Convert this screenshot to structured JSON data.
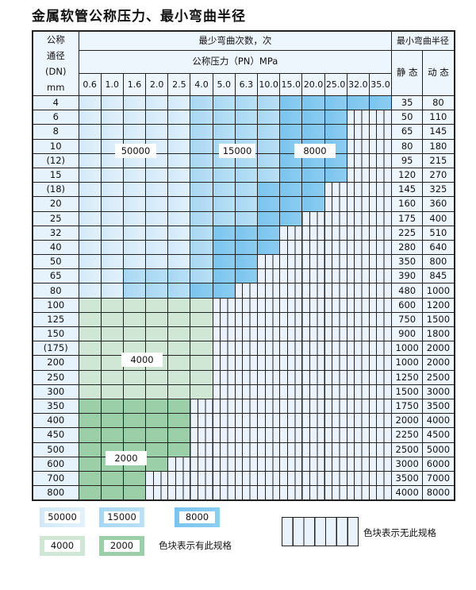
{
  "title": "金属软管公称压力、最小弯曲半径",
  "header": {
    "dn_label": "公称\n通径\n(DN)\nmm",
    "cycles_label": "最少弯曲次数，次",
    "radius_label": "最小弯曲半径",
    "pressure_label": "公称压力（PN）MPa",
    "static_label": "静 态",
    "dynamic_label": "动 态",
    "pressures": [
      "0.6",
      "1.0",
      "1.6",
      "2.0",
      "2.5",
      "4.0",
      "5.0",
      "6.3",
      "10.0",
      "15.0",
      "20.0",
      "25.0",
      "32.0",
      "35.0"
    ]
  },
  "colors": {
    "50000": "#d2e9f9",
    "15000": "#a8d7f3",
    "8000": "#79c4ee",
    "4000": "#d0e7d5",
    "2000": "#9acfa8",
    "none": "#eaf3fb"
  },
  "rows": [
    {
      "dn": "4",
      "static": "35",
      "dynamic": "80",
      "segments": [
        [
          "50000",
          5
        ],
        [
          "15000",
          4
        ],
        [
          "8000",
          5
        ]
      ]
    },
    {
      "dn": "6",
      "static": "50",
      "dynamic": "110",
      "segments": [
        [
          "50000",
          5
        ],
        [
          "15000",
          4
        ],
        [
          "8000",
          3
        ],
        [
          "none",
          2
        ]
      ]
    },
    {
      "dn": "8",
      "static": "65",
      "dynamic": "145",
      "segments": [
        [
          "50000",
          5
        ],
        [
          "15000",
          4
        ],
        [
          "8000",
          3
        ],
        [
          "none",
          2
        ]
      ]
    },
    {
      "dn": "10",
      "static": "80",
      "dynamic": "180",
      "segments": [
        [
          "50000",
          5
        ],
        [
          "15000",
          4
        ],
        [
          "8000",
          3
        ],
        [
          "none",
          2
        ]
      ]
    },
    {
      "dn": "(12)",
      "static": "95",
      "dynamic": "215",
      "segments": [
        [
          "50000",
          5
        ],
        [
          "15000",
          4
        ],
        [
          "8000",
          3
        ],
        [
          "none",
          2
        ]
      ]
    },
    {
      "dn": "15",
      "static": "120",
      "dynamic": "270",
      "segments": [
        [
          "50000",
          5
        ],
        [
          "15000",
          4
        ],
        [
          "8000",
          3
        ],
        [
          "none",
          2
        ]
      ]
    },
    {
      "dn": "(18)",
      "static": "145",
      "dynamic": "325",
      "segments": [
        [
          "50000",
          5
        ],
        [
          "15000",
          3
        ],
        [
          "8000",
          3
        ],
        [
          "none",
          3
        ]
      ]
    },
    {
      "dn": "20",
      "static": "160",
      "dynamic": "360",
      "segments": [
        [
          "50000",
          5
        ],
        [
          "15000",
          3
        ],
        [
          "8000",
          3
        ],
        [
          "none",
          3
        ]
      ]
    },
    {
      "dn": "25",
      "static": "175",
      "dynamic": "400",
      "segments": [
        [
          "50000",
          5
        ],
        [
          "15000",
          3
        ],
        [
          "8000",
          2
        ],
        [
          "none",
          4
        ]
      ]
    },
    {
      "dn": "32",
      "static": "225",
      "dynamic": "510",
      "segments": [
        [
          "50000",
          5
        ],
        [
          "15000",
          1
        ],
        [
          "8000",
          3
        ],
        [
          "none",
          5
        ]
      ]
    },
    {
      "dn": "40",
      "static": "280",
      "dynamic": "640",
      "segments": [
        [
          "50000",
          5
        ],
        [
          "15000",
          1
        ],
        [
          "8000",
          3
        ],
        [
          "none",
          5
        ]
      ]
    },
    {
      "dn": "50",
      "static": "350",
      "dynamic": "800",
      "segments": [
        [
          "50000",
          5
        ],
        [
          "15000",
          1
        ],
        [
          "8000",
          2
        ],
        [
          "none",
          6
        ]
      ]
    },
    {
      "dn": "65",
      "static": "390",
      "dynamic": "845",
      "segments": [
        [
          "50000",
          2
        ],
        [
          "15000",
          4
        ],
        [
          "8000",
          2
        ],
        [
          "none",
          6
        ]
      ]
    },
    {
      "dn": "80",
      "static": "480",
      "dynamic": "1000",
      "segments": [
        [
          "50000",
          2
        ],
        [
          "15000",
          3
        ],
        [
          "8000",
          2
        ],
        [
          "none",
          7
        ]
      ]
    },
    {
      "dn": "100",
      "static": "600",
      "dynamic": "1200",
      "segments": [
        [
          "4000",
          6
        ],
        [
          "none",
          8
        ]
      ]
    },
    {
      "dn": "125",
      "static": "750",
      "dynamic": "1500",
      "segments": [
        [
          "4000",
          6
        ],
        [
          "none",
          8
        ]
      ]
    },
    {
      "dn": "150",
      "static": "900",
      "dynamic": "1800",
      "segments": [
        [
          "4000",
          6
        ],
        [
          "none",
          8
        ]
      ]
    },
    {
      "dn": "(175)",
      "static": "1000",
      "dynamic": "2000",
      "segments": [
        [
          "4000",
          6
        ],
        [
          "none",
          8
        ]
      ]
    },
    {
      "dn": "200",
      "static": "1000",
      "dynamic": "2000",
      "segments": [
        [
          "4000",
          6
        ],
        [
          "none",
          8
        ]
      ]
    },
    {
      "dn": "250",
      "static": "1250",
      "dynamic": "2500",
      "segments": [
        [
          "4000",
          6
        ],
        [
          "none",
          8
        ]
      ]
    },
    {
      "dn": "300",
      "static": "1500",
      "dynamic": "3000",
      "segments": [
        [
          "4000",
          6
        ],
        [
          "none",
          8
        ]
      ]
    },
    {
      "dn": "350",
      "static": "1750",
      "dynamic": "3500",
      "segments": [
        [
          "2000",
          5
        ],
        [
          "none",
          9
        ]
      ]
    },
    {
      "dn": "400",
      "static": "2000",
      "dynamic": "4000",
      "segments": [
        [
          "2000",
          5
        ],
        [
          "none",
          9
        ]
      ]
    },
    {
      "dn": "450",
      "static": "2250",
      "dynamic": "4500",
      "segments": [
        [
          "2000",
          5
        ],
        [
          "none",
          9
        ]
      ]
    },
    {
      "dn": "500",
      "static": "2500",
      "dynamic": "5000",
      "segments": [
        [
          "2000",
          5
        ],
        [
          "none",
          9
        ]
      ]
    },
    {
      "dn": "600",
      "static": "3000",
      "dynamic": "6000",
      "segments": [
        [
          "2000",
          4
        ],
        [
          "none",
          10
        ]
      ]
    },
    {
      "dn": "700",
      "static": "3500",
      "dynamic": "7000",
      "segments": [
        [
          "2000",
          3
        ],
        [
          "none",
          11
        ]
      ]
    },
    {
      "dn": "800",
      "static": "4000",
      "dynamic": "8000",
      "segments": [
        [
          "2000",
          3
        ],
        [
          "none",
          11
        ]
      ]
    }
  ],
  "region_labels": {
    "l50000": "50000",
    "l15000": "15000",
    "l8000": "8000",
    "l4000": "4000",
    "l2000": "2000"
  },
  "legend": {
    "items": [
      "50000",
      "15000",
      "8000",
      "4000",
      "2000"
    ],
    "has_spec_text": "色块表示有此规格",
    "no_spec_text": "色块表示无此规格"
  }
}
